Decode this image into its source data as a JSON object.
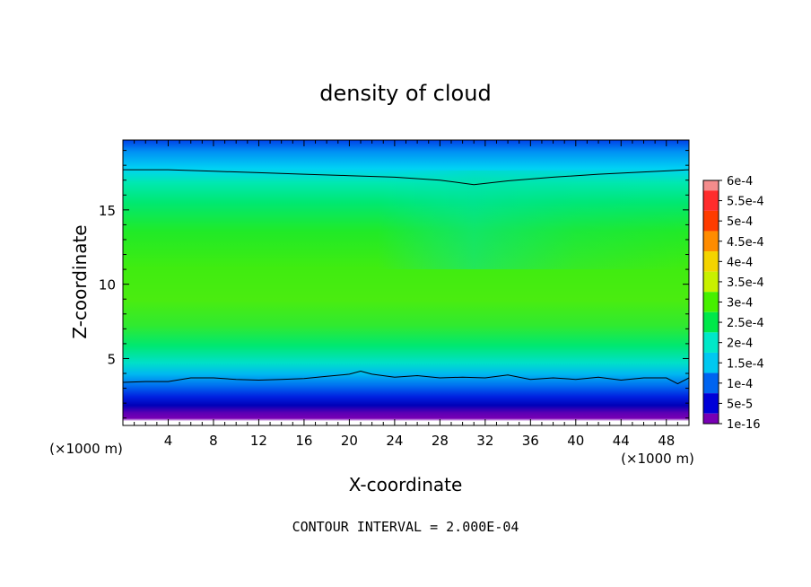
{
  "chart_data": {
    "type": "heatmap",
    "title": "density of cloud",
    "xlabel": "X-coordinate",
    "ylabel": "Z-coordinate",
    "x_unit_label": "(×1000 m)",
    "y_unit_label": "(×1000 m)",
    "xlim": [
      0,
      50
    ],
    "ylim": [
      0.5,
      19.7
    ],
    "x_ticks": [
      "4",
      "8",
      "12",
      "16",
      "20",
      "24",
      "28",
      "32",
      "36",
      "40",
      "44",
      "48"
    ],
    "y_ticks": [
      "5",
      "10",
      "15"
    ],
    "x_tick_values": [
      4,
      8,
      12,
      16,
      20,
      24,
      28,
      32,
      36,
      40,
      44,
      48
    ],
    "y_tick_values": [
      5,
      10,
      15
    ],
    "colorbar": {
      "labels": [
        "6e-4",
        "5.5e-4",
        "5e-4",
        "4.5e-4",
        "4e-4",
        "3.5e-4",
        "3e-4",
        "2.5e-4",
        "2e-4",
        "1.5e-4",
        "1e-4",
        "5e-5",
        "1e-16"
      ],
      "colors": [
        "#f48c8c",
        "#ff2c2c",
        "#ff3c00",
        "#ff8c00",
        "#f4d400",
        "#c8f000",
        "#46f000",
        "#00e84a",
        "#00e8c8",
        "#00c8f0",
        "#0064f0",
        "#0000d8",
        "#7800b4"
      ]
    },
    "contour_level": "2e-4",
    "upper_contour": {
      "x": [
        0,
        4,
        8,
        12,
        16,
        20,
        24,
        28,
        31,
        34,
        38,
        42,
        46,
        50
      ],
      "z": [
        17.7,
        17.7,
        17.6,
        17.5,
        17.4,
        17.3,
        17.2,
        17.0,
        16.7,
        16.95,
        17.2,
        17.4,
        17.55,
        17.7
      ]
    },
    "lower_contour": {
      "x": [
        0,
        2,
        4,
        6,
        8,
        10,
        12,
        14,
        16,
        18,
        20,
        21,
        22,
        24,
        26,
        28,
        30,
        32,
        34,
        36,
        38,
        40,
        42,
        44,
        46,
        48,
        49,
        50
      ],
      "z": [
        3.4,
        3.45,
        3.45,
        3.7,
        3.7,
        3.6,
        3.55,
        3.6,
        3.65,
        3.8,
        3.95,
        4.15,
        3.95,
        3.75,
        3.85,
        3.7,
        3.75,
        3.7,
        3.9,
        3.6,
        3.7,
        3.6,
        3.75,
        3.55,
        3.7,
        3.7,
        3.3,
        3.7
      ]
    },
    "annotation": "CONTOUR INTERVAL = 2.000E-04"
  }
}
